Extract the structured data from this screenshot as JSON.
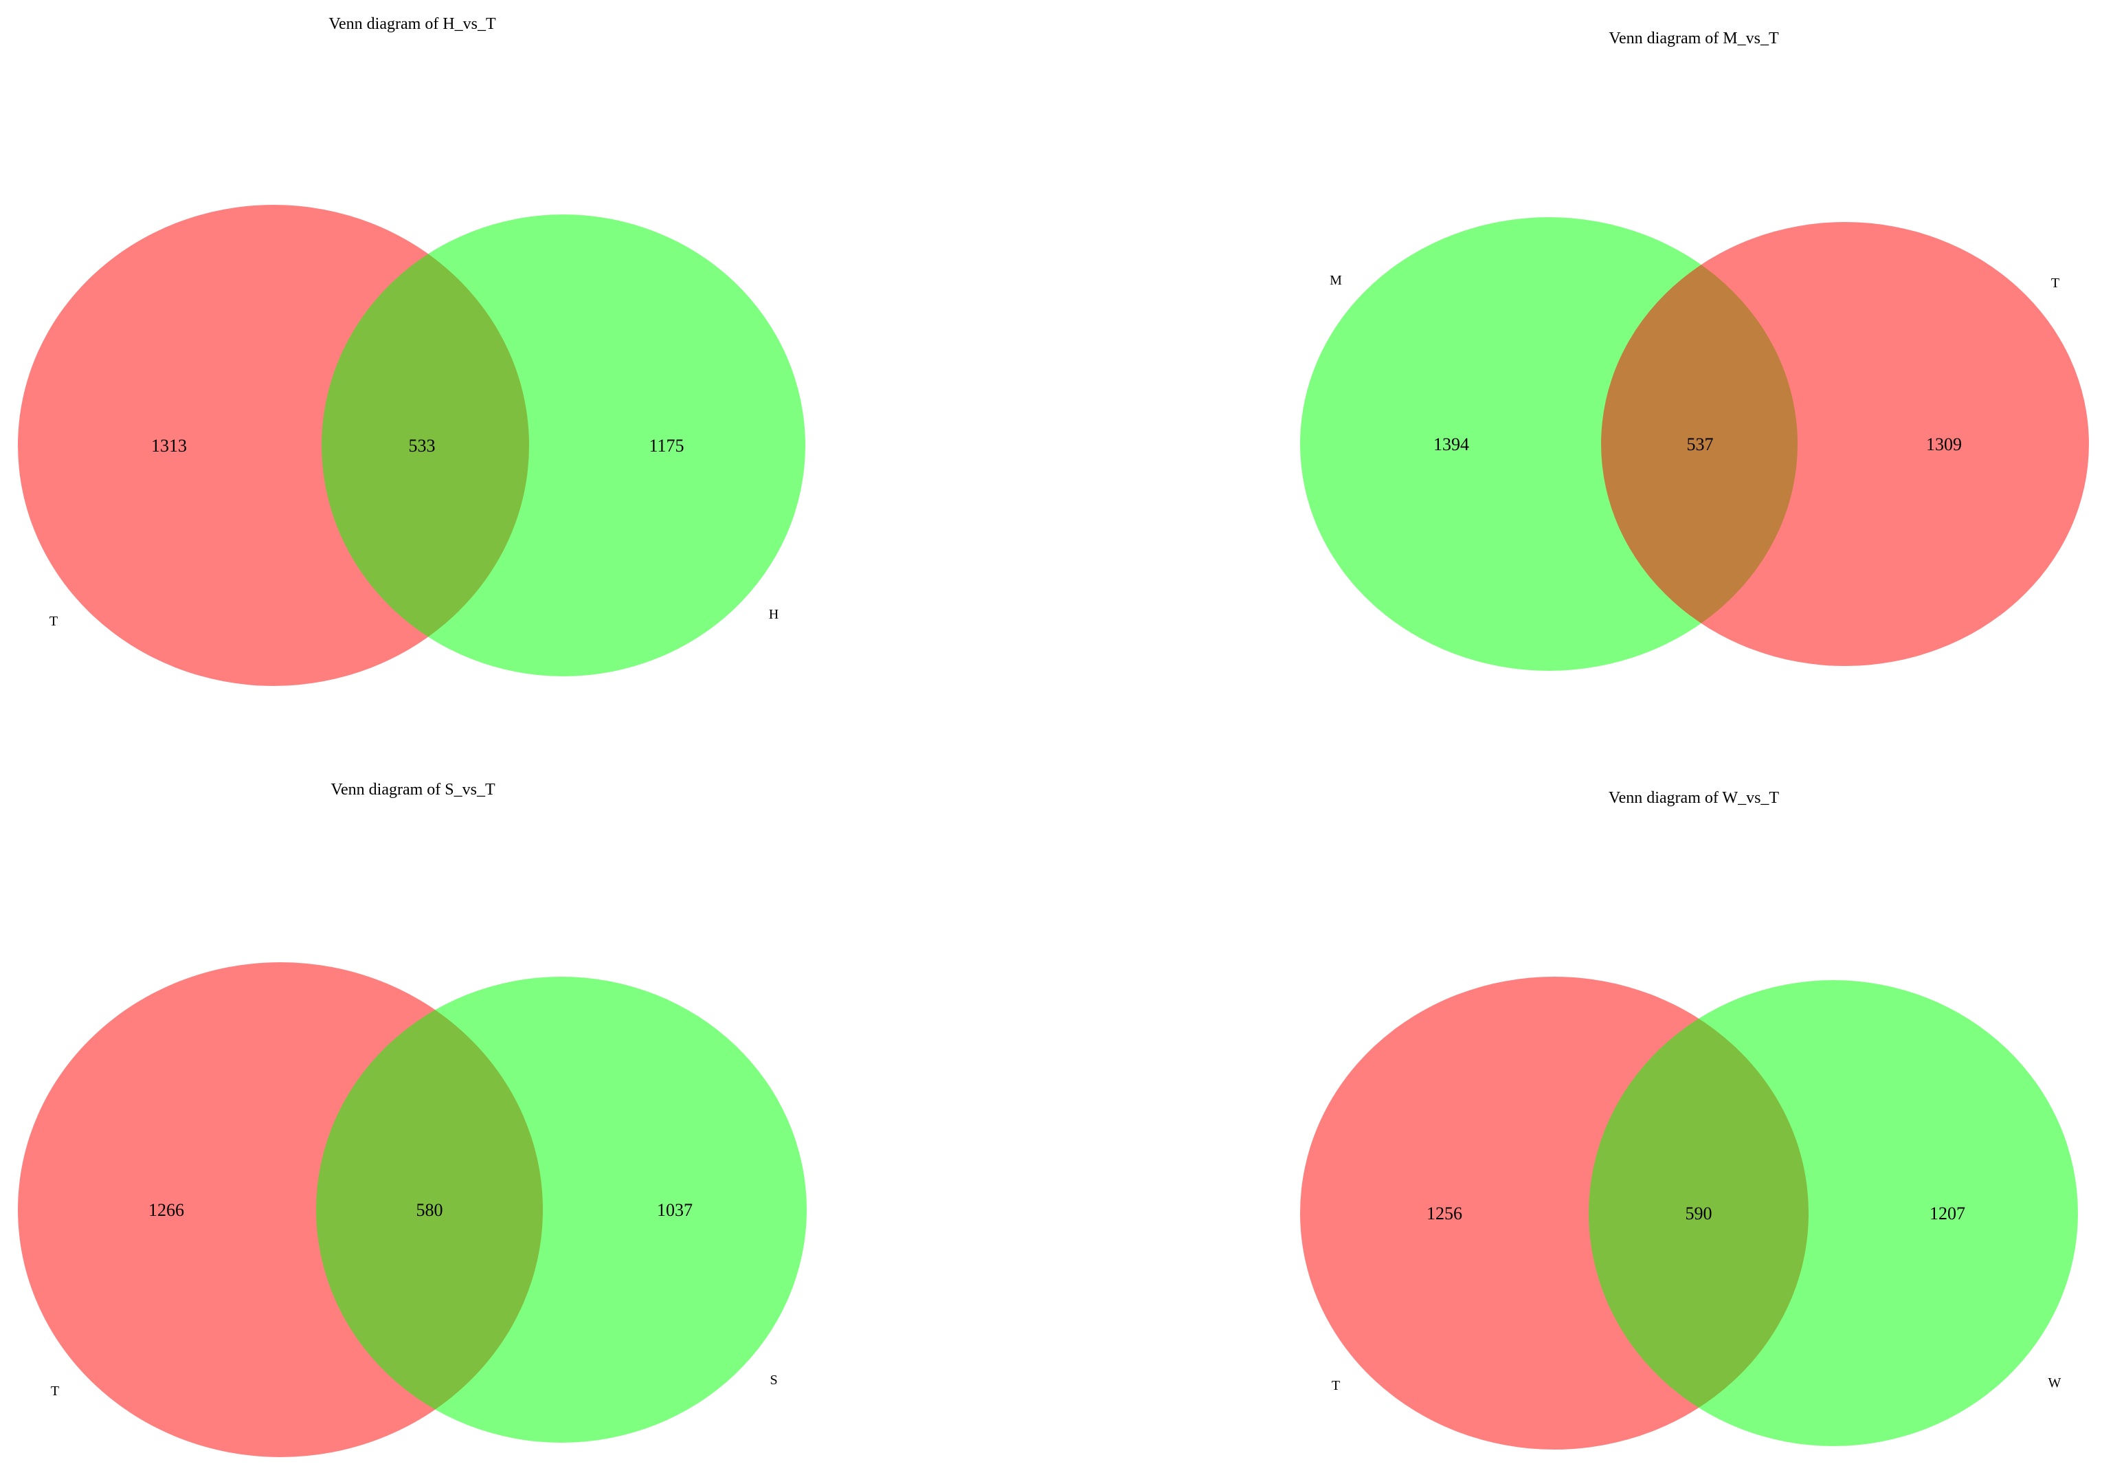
{
  "colors": {
    "red_set": "#ff0000",
    "green_set": "#00ff00",
    "overlap_green_on_red": "#80bf3f",
    "overlap_red_on_green": "#bf7f3f",
    "text": "#000000",
    "background": "#ffffff"
  },
  "panels": [
    {
      "title": "Venn diagram of H_vs_T",
      "left_set": {
        "name": "T",
        "color": "#ff0000",
        "count": "1313"
      },
      "right_set": {
        "name": "H",
        "color": "#00ff00",
        "count": "1175"
      },
      "intersection": {
        "count": "533"
      }
    },
    {
      "title": "Venn diagram of M_vs_T",
      "left_set": {
        "name": "M",
        "color": "#00ff00",
        "count": "1394"
      },
      "right_set": {
        "name": "T",
        "color": "#ff0000",
        "count": "1309"
      },
      "intersection": {
        "count": "537"
      }
    },
    {
      "title": "Venn diagram of S_vs_T",
      "left_set": {
        "name": "T",
        "color": "#ff0000",
        "count": "1266"
      },
      "right_set": {
        "name": "S",
        "color": "#00ff00",
        "count": "1037"
      },
      "intersection": {
        "count": "580"
      }
    },
    {
      "title": "Venn diagram of W_vs_T",
      "left_set": {
        "name": "T",
        "color": "#ff0000",
        "count": "1256"
      },
      "right_set": {
        "name": "W",
        "color": "#00ff00",
        "count": "1207"
      },
      "intersection": {
        "count": "590"
      }
    }
  ]
}
